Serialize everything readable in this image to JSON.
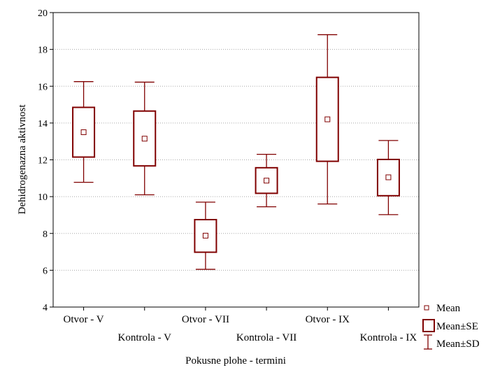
{
  "chart_data": {
    "type": "box",
    "xlabel": "Pokusne plohe - termini",
    "ylabel": "Dehidrogenazna aktivnost",
    "ylim": [
      4,
      20
    ],
    "yticks": [
      4,
      6,
      8,
      10,
      12,
      14,
      16,
      18,
      20
    ],
    "grid": true,
    "categories": [
      "Otvor - V",
      "Kontrola - V",
      "Otvor - VII",
      "Kontrola - VII",
      "Otvor - IX",
      "Kontrola - IX"
    ],
    "mean": [
      13.5,
      13.15,
      7.88,
      10.87,
      14.2,
      11.05
    ],
    "se_low": [
      12.15,
      11.67,
      6.98,
      10.18,
      11.92,
      10.05
    ],
    "se_high": [
      14.85,
      14.65,
      8.75,
      11.57,
      16.48,
      12.02
    ],
    "sd_low": [
      10.78,
      10.1,
      6.05,
      9.45,
      9.6,
      9.02
    ],
    "sd_high": [
      16.25,
      16.22,
      9.7,
      12.3,
      18.8,
      13.05
    ],
    "legend": {
      "position": "bottom-right",
      "items": [
        "Mean",
        "Mean±SE",
        "Mean±SD"
      ]
    },
    "color": "#800000"
  }
}
